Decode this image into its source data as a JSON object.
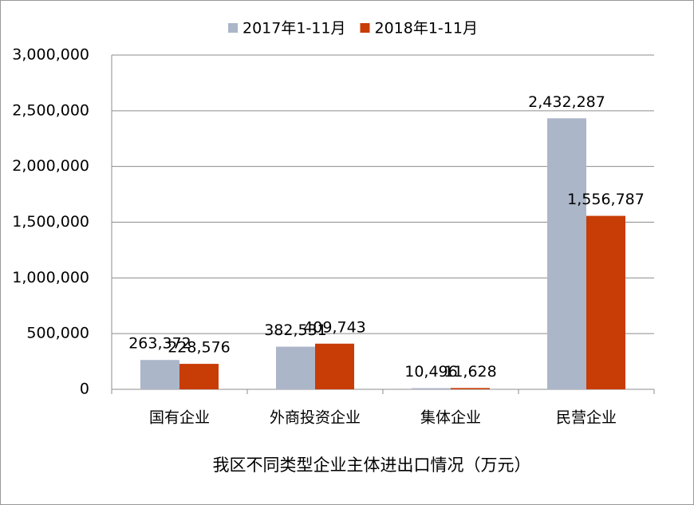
{
  "chart_data": {
    "type": "bar",
    "title": "我区不同类型企业主体进出口情况（万元）",
    "categories": [
      "国有企业",
      "外商投资企业",
      "集体企业",
      "民营企业"
    ],
    "series": [
      {
        "name": "2017年1-11月",
        "color": "#abb6c8",
        "values": [
          263372,
          382531,
          10496,
          2432287
        ],
        "value_labels": [
          "263,372",
          "382,531",
          "10,496",
          "2,432,287"
        ]
      },
      {
        "name": "2018年1-11月",
        "color": "#c83c06",
        "values": [
          228576,
          409743,
          11628,
          1556787
        ],
        "value_labels": [
          "228,576",
          "409,743",
          "11,628",
          "1,556,787"
        ]
      }
    ],
    "ylim": [
      0,
      3000000
    ],
    "yticks": [
      0,
      {
        "value": 500000,
        "label": "500,000"
      },
      {
        "value": 1000000,
        "label": "1,000,000"
      },
      {
        "value": 1500000,
        "label": "1,500,000"
      },
      {
        "value": 2000000,
        "label": "2,000,000"
      },
      {
        "value": 2500000,
        "label": "2,500,000"
      },
      {
        "value": 3000000,
        "label": "3,000,000"
      }
    ],
    "grid": true,
    "legend": "top"
  }
}
